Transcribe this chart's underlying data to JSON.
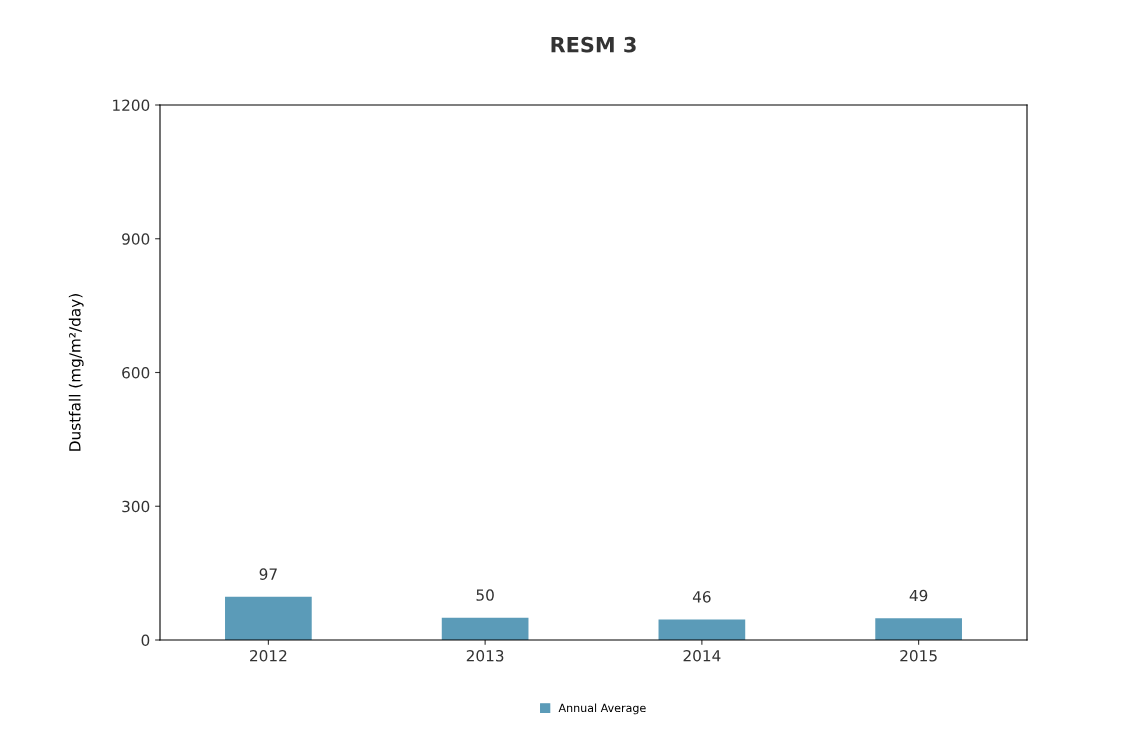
{
  "chart_data": {
    "type": "bar",
    "title": "RESM 3",
    "ylabel": "Dustfall (mg/m²/day)",
    "categories": [
      "2012",
      "2013",
      "2014",
      "2015"
    ],
    "series": [
      {
        "name": "Annual Average",
        "color": "#5b9bb8",
        "values": [
          97,
          50,
          46,
          49
        ]
      }
    ],
    "ylim": [
      0,
      1200
    ],
    "yticks": [
      0,
      300,
      600,
      900,
      1200
    ],
    "grid": false,
    "legend": "bottom",
    "data_labels": true
  }
}
